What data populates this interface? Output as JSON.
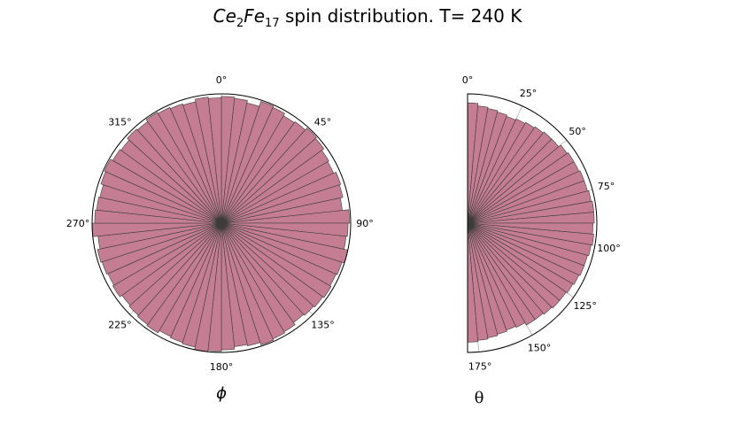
{
  "figure": {
    "title_main": "Ce",
    "title_sub1": "2",
    "title_main2": "Fe",
    "title_sub2": "17",
    "title_rest": " spin distribution. T= 240 K",
    "bar_color": "#c47d92",
    "edge_color": "#3c3c3c"
  },
  "chart_data": [
    {
      "type": "bar",
      "projection": "polar",
      "xlabel": "ϕ",
      "theta_direction": "clockwise",
      "theta_zero": "top",
      "theta_range_deg": [
        0,
        360
      ],
      "theta_tick_labels": [
        "0°",
        "45°",
        "90°",
        "135°",
        "180°",
        "225°",
        "270°",
        "315°"
      ],
      "r_grid": true,
      "bin_count": 60,
      "values": [
        0.98,
        0.97,
        0.95,
        0.99,
        0.98,
        0.96,
        0.97,
        0.99,
        0.98,
        0.96,
        0.95,
        0.97,
        0.96,
        0.94,
        0.99,
        0.98,
        0.97,
        1.0,
        0.98,
        0.97,
        0.98,
        0.97,
        0.96,
        0.95,
        0.97,
        0.98,
        0.99,
        0.97,
        0.96,
        0.98,
        0.99,
        1.0,
        0.98,
        0.97,
        0.96,
        0.98,
        0.97,
        0.96,
        0.95,
        0.97,
        0.96,
        0.97,
        0.98,
        0.96,
        1.0,
        0.98,
        0.97,
        0.96,
        0.98,
        0.99,
        0.97,
        0.96,
        0.98,
        0.97,
        0.99,
        0.98,
        0.97,
        0.96,
        0.98,
        0.97
      ]
    },
    {
      "type": "bar",
      "projection": "polar",
      "xlabel": "θ",
      "theta_direction": "clockwise",
      "theta_zero": "top",
      "theta_range_deg": [
        0,
        180
      ],
      "theta_tick_labels": [
        "0°",
        "25°",
        "50°",
        "75°",
        "100°",
        "125°",
        "150°",
        "175°"
      ],
      "r_grid": true,
      "bin_count": 36,
      "values": [
        0.93,
        0.91,
        0.9,
        0.89,
        0.88,
        0.89,
        0.9,
        0.91,
        0.92,
        0.92,
        0.94,
        0.95,
        0.95,
        0.96,
        0.96,
        0.97,
        0.98,
        0.98,
        0.97,
        0.98,
        0.97,
        0.96,
        0.96,
        0.95,
        0.94,
        0.93,
        0.93,
        0.92,
        0.91,
        0.91,
        0.89,
        0.88,
        0.89,
        0.9,
        0.91,
        0.92
      ]
    }
  ]
}
